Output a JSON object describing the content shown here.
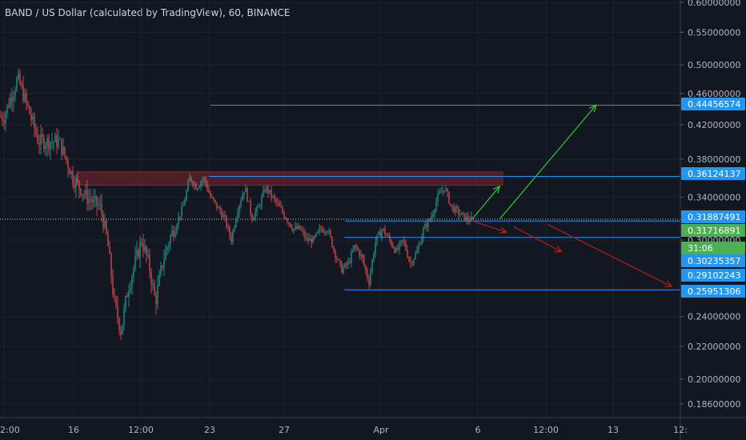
{
  "chart_data": {
    "type": "candlestick",
    "title": "BAND / US Dollar (calculated by TradingView), 60, BINANCE",
    "yaxis": {
      "ticks": [
        0.6,
        0.55,
        0.5,
        0.46,
        0.42,
        0.38,
        0.34,
        0.3,
        0.24,
        0.22,
        0.2,
        0.186
      ],
      "tick_labels": [
        "0.60000000",
        "0.55000000",
        "0.50000000",
        "0.46000000",
        "0.42000000",
        "0.38000000",
        "0.34000000",
        "0.30000000",
        "0.24000000",
        "0.22000000",
        "0.20000000",
        "0.18600000"
      ],
      "scale": "log"
    },
    "xaxis": {
      "tick_labels": [
        "2:00",
        "16",
        "12:00",
        "23",
        "27",
        "Apr",
        "6",
        "12:00",
        "13",
        "12:"
      ]
    },
    "price_tags": [
      {
        "label": "0.44456574",
        "value": 0.44456574,
        "color": "#2196f3"
      },
      {
        "label": "0.36124137",
        "value": 0.36124137,
        "color": "#2196f3"
      },
      {
        "label": "0.31887491",
        "value": 0.31887491,
        "color": "#2196f3"
      },
      {
        "label": "0.31716891",
        "value": 0.31716891,
        "color": "#4caf50"
      },
      {
        "label": "31:06",
        "value": 0.304,
        "color": "#4caf50"
      },
      {
        "label": "0.30235357",
        "value": 0.30235357,
        "color": "#2196f3"
      },
      {
        "label": "0.29102243",
        "value": 0.29102243,
        "color": "#2196f3"
      },
      {
        "label": "0.25951306",
        "value": 0.25951306,
        "color": "#2196f3"
      }
    ],
    "hlines": [
      0.44456574,
      0.36124137,
      0.31716891,
      0.30235357,
      0.25951306
    ],
    "current_price": 0.31887491,
    "resistance_zone": [
      0.352,
      0.366
    ],
    "price_path": [
      {
        "t": 0,
        "p": 0.43
      },
      {
        "t": 2,
        "p": 0.48
      },
      {
        "t": 5,
        "p": 0.4
      },
      {
        "t": 8,
        "p": 0.4
      },
      {
        "t": 10,
        "p": 0.36
      },
      {
        "t": 12,
        "p": 0.34
      },
      {
        "t": 14,
        "p": 0.33
      },
      {
        "t": 15,
        "p": 0.3
      },
      {
        "t": 16,
        "p": 0.25
      },
      {
        "t": 17,
        "p": 0.23
      },
      {
        "t": 18,
        "p": 0.26
      },
      {
        "t": 19,
        "p": 0.28
      },
      {
        "t": 20,
        "p": 0.3
      },
      {
        "t": 21,
        "p": 0.28
      },
      {
        "t": 22,
        "p": 0.25
      },
      {
        "t": 23,
        "p": 0.28
      },
      {
        "t": 24,
        "p": 0.3
      },
      {
        "t": 26,
        "p": 0.33
      },
      {
        "t": 27,
        "p": 0.36
      },
      {
        "t": 28,
        "p": 0.35
      },
      {
        "t": 29,
        "p": 0.36
      },
      {
        "t": 30,
        "p": 0.34
      },
      {
        "t": 31,
        "p": 0.33
      },
      {
        "t": 32,
        "p": 0.32
      },
      {
        "t": 33,
        "p": 0.3
      },
      {
        "t": 34,
        "p": 0.33
      },
      {
        "t": 35,
        "p": 0.35
      },
      {
        "t": 36,
        "p": 0.32
      },
      {
        "t": 37,
        "p": 0.33
      },
      {
        "t": 38,
        "p": 0.35
      },
      {
        "t": 39,
        "p": 0.34
      },
      {
        "t": 40,
        "p": 0.33
      },
      {
        "t": 41,
        "p": 0.32
      },
      {
        "t": 42,
        "p": 0.31
      },
      {
        "t": 43,
        "p": 0.31
      },
      {
        "t": 44,
        "p": 0.3
      },
      {
        "t": 45,
        "p": 0.3
      },
      {
        "t": 46,
        "p": 0.31
      },
      {
        "t": 47,
        "p": 0.31
      },
      {
        "t": 48,
        "p": 0.29
      },
      {
        "t": 49,
        "p": 0.275
      },
      {
        "t": 50,
        "p": 0.28
      },
      {
        "t": 51,
        "p": 0.295
      },
      {
        "t": 52,
        "p": 0.285
      },
      {
        "t": 53,
        "p": 0.265
      },
      {
        "t": 54,
        "p": 0.3
      },
      {
        "t": 55,
        "p": 0.31
      },
      {
        "t": 56,
        "p": 0.3
      },
      {
        "t": 57,
        "p": 0.29
      },
      {
        "t": 58,
        "p": 0.3
      },
      {
        "t": 59,
        "p": 0.28
      },
      {
        "t": 60,
        "p": 0.29
      },
      {
        "t": 61,
        "p": 0.31
      },
      {
        "t": 62,
        "p": 0.32
      },
      {
        "t": 63,
        "p": 0.34
      },
      {
        "t": 64,
        "p": 0.35
      },
      {
        "t": 65,
        "p": 0.33
      },
      {
        "t": 66,
        "p": 0.325
      },
      {
        "t": 67,
        "p": 0.32
      },
      {
        "t": 68,
        "p": 0.318
      }
    ],
    "arrows": [
      {
        "from": {
          "t": 68,
          "p": 0.3189
        },
        "to": {
          "t": 72,
          "p": 0.351
        },
        "color": "#33cc33"
      },
      {
        "from": {
          "t": 72,
          "p": 0.3189
        },
        "to": {
          "t": 86,
          "p": 0.4446
        },
        "color": "#33cc33"
      },
      {
        "from": {
          "t": 68,
          "p": 0.3172
        },
        "to": {
          "t": 73,
          "p": 0.307
        },
        "color": "#b71c1c"
      },
      {
        "from": {
          "t": 74,
          "p": 0.312
        },
        "to": {
          "t": 81,
          "p": 0.29
        },
        "color": "#b71c1c"
      },
      {
        "from": {
          "t": 79,
          "p": 0.314
        },
        "to": {
          "t": 97,
          "p": 0.262
        },
        "color": "#b71c1c"
      }
    ]
  }
}
